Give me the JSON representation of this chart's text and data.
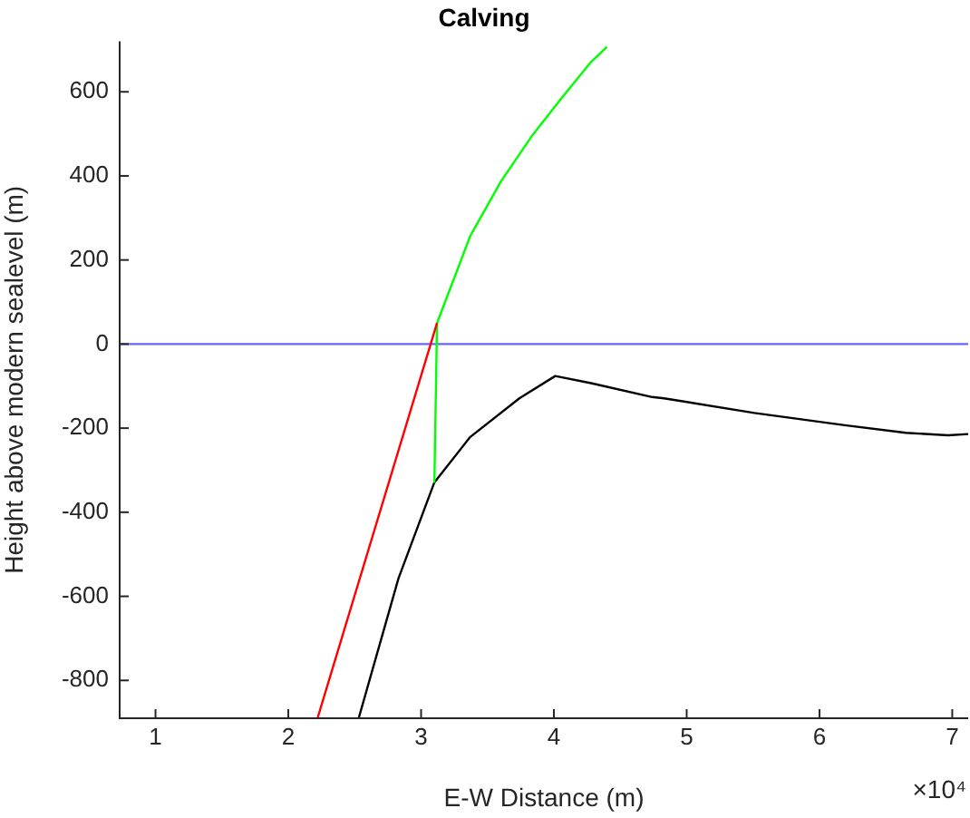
{
  "chart_data": {
    "type": "line",
    "title": "Calving",
    "xlabel": "E-W Distance (m)",
    "ylabel": "Height above modern sealevel (m)",
    "xlim": [
      0.73,
      7.12
    ],
    "ylim": [
      -890,
      720
    ],
    "xticks": [
      1,
      2,
      3,
      4,
      5,
      6,
      7
    ],
    "yticks": [
      -800,
      -600,
      -400,
      -200,
      0,
      200,
      400,
      600
    ],
    "annotations": [
      "×10⁴"
    ],
    "ref_lines": [
      {
        "axis": "y",
        "value": 0,
        "color": "#6666ff"
      }
    ],
    "grid": false,
    "legend": false,
    "marker": "none",
    "line_style": "solid",
    "series": [
      {
        "color": "#ff0000",
        "x": [
          2.22,
          3.12
        ],
        "values": [
          -890,
          50
        ]
      },
      {
        "color": "#00ff00",
        "x": [
          3.1,
          3.12,
          3.37,
          3.6,
          3.83,
          4.06,
          4.28,
          4.4
        ],
        "values": [
          -330,
          50,
          257,
          386,
          493,
          586,
          671,
          707
        ]
      },
      {
        "color": "#000000",
        "x": [
          2.53,
          2.83,
          3.1,
          3.37,
          3.74,
          4.01,
          4.28,
          4.74,
          4.83,
          5.51,
          6.19,
          6.65,
          6.97,
          7.12
        ],
        "values": [
          -890,
          -557,
          -329,
          -221,
          -129,
          -76,
          -93,
          -126,
          -129,
          -164,
          -193,
          -211,
          -217,
          -214
        ]
      }
    ]
  }
}
